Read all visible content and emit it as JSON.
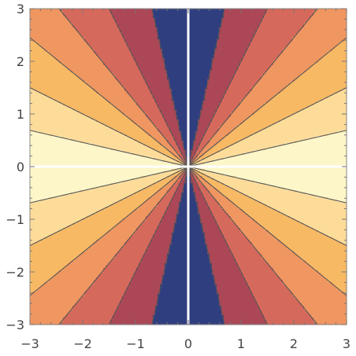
{
  "chart_data": {
    "type": "contour",
    "title": "",
    "xlabel": "",
    "ylabel": "",
    "xlim": [
      -3,
      3
    ],
    "ylim": [
      -3,
      3
    ],
    "x_ticks": [
      -3,
      -2,
      -1,
      0,
      1,
      2,
      3
    ],
    "y_ticks": [
      -3,
      -2,
      -1,
      0,
      1,
      2,
      3
    ],
    "x_tick_labels": [
      "−3",
      "−2",
      "−1",
      "0",
      "1",
      "2",
      "3"
    ],
    "y_tick_labels": [
      "−3",
      "−2",
      "−1",
      "0",
      "1",
      "2",
      "3"
    ],
    "function_shape": "saddle, level = (x^2 - y^2)/(x^2 + y^2)",
    "contour_levels": [
      -0.9,
      -0.6,
      -0.2,
      0.2,
      0.6,
      0.9
    ],
    "band_colors": [
      "#fdf6c8",
      "#fddc9a",
      "#f8b965",
      "#ef9661",
      "#d5695c",
      "#ab4756",
      "#2f3e7f"
    ],
    "contour_line_color": "#555555",
    "axis_line_color": "#ffffff",
    "grid": false,
    "legend": "none"
  }
}
